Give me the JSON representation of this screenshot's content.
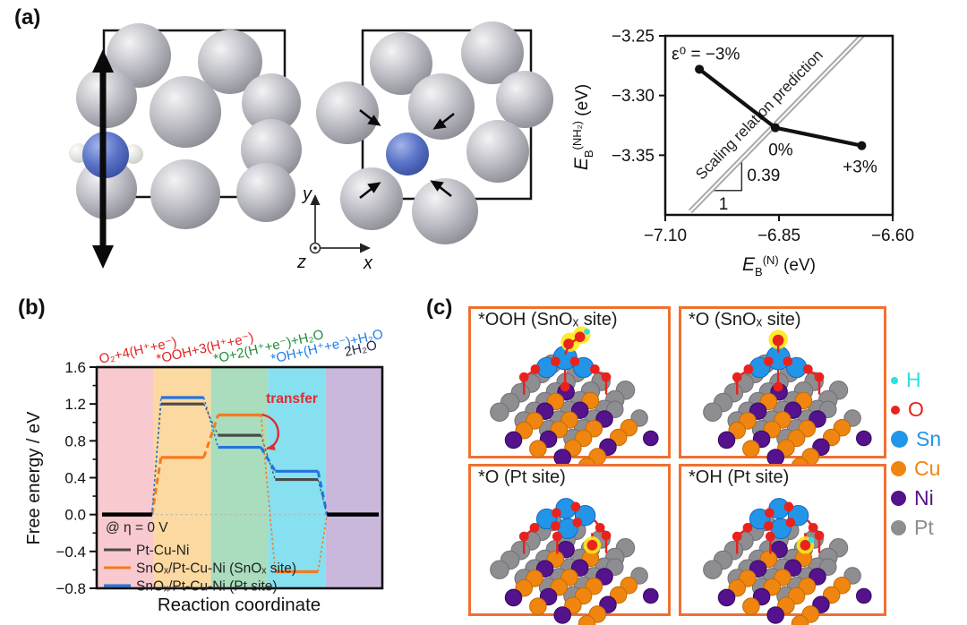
{
  "figure": {
    "panel_a_label": "(a)",
    "panel_b_label": "(b)",
    "panel_c_label": "(c)"
  },
  "panel_a": {
    "axes": {
      "x": "x",
      "y": "y",
      "z": "z"
    }
  },
  "panel_c": {
    "border_color": "#f07030",
    "boxes": [
      {
        "label": "*OOH (SnOₓ site)",
        "variant": "OOH-snox"
      },
      {
        "label": "*O (SnOₓ site)",
        "variant": "O-snox"
      },
      {
        "label": "*O (Pt site)",
        "variant": "O-pt"
      },
      {
        "label": "*OH (Pt site)",
        "variant": "OH-pt"
      }
    ],
    "legend": [
      {
        "element": "H",
        "color": "#2ee0e0",
        "dot": 8
      },
      {
        "element": "O",
        "color": "#e8231e",
        "dot": 10
      },
      {
        "element": "Sn",
        "color": "#2196e8",
        "dot": 19
      },
      {
        "element": "Cu",
        "color": "#f0860f",
        "dot": 17
      },
      {
        "element": "Ni",
        "color": "#54128c",
        "dot": 17
      },
      {
        "element": "Pt",
        "color": "#8e8e92",
        "dot": 17
      }
    ]
  },
  "chart_data": [
    {
      "id": "nh2-n-scaling",
      "type": "scatter",
      "xlabel_parts": {
        "base": "E",
        "sub": "B",
        "sup": "(N)",
        "unit": " (eV)"
      },
      "ylabel_parts": {
        "base": "E",
        "sub": "B",
        "sup": "(NH₂)",
        "unit": " (eV)"
      },
      "xlim": [
        -7.1,
        -6.6
      ],
      "ylim": [
        -3.4,
        -3.25
      ],
      "xticks": [
        -7.1,
        -6.85,
        -6.6
      ],
      "yticks": [
        -3.25,
        -3.3,
        -3.35
      ],
      "points": [
        {
          "label": "ε⁰ = −3%",
          "x": -7.025,
          "y": -3.278
        },
        {
          "label": "0%",
          "x": -6.858,
          "y": -3.327
        },
        {
          "label": "+3%",
          "x": -6.668,
          "y": -3.342
        }
      ],
      "line": {
        "label": "Scaling relation prediction",
        "slope": 0.39,
        "through": [
          -6.86,
          -3.325
        ],
        "slope_label": "0.39",
        "run_label": "1"
      }
    },
    {
      "id": "orr-free-energy",
      "type": "line",
      "xlabel": "Reaction coordinate",
      "ylabel": "Free energy / eV",
      "ylim": [
        -0.8,
        1.6
      ],
      "yticks": [
        1.6,
        1.2,
        0.8,
        0.4,
        0.0,
        -0.4,
        -0.8
      ],
      "condition_label": "@ η = 0 V",
      "stages": [
        {
          "label": "O₂+4(H⁺+e⁻)",
          "color": "#e02424",
          "band": "#f8c9ce"
        },
        {
          "label": "*OOH+3(H⁺+e⁻)",
          "color": "#e02424",
          "band": "#fcd9a1"
        },
        {
          "label": "*O+2(H⁺+e⁻)+H₂O",
          "color": "#1e8c3c",
          "band": "#a9ddbd"
        },
        {
          "label": "*OH+(H⁺+e⁻)+H₂O",
          "color": "#1e7ee8",
          "band": "#87e0ef"
        },
        {
          "label": "2H₂O",
          "color": "#2a2b45",
          "band": "#c9b8dc"
        }
      ],
      "series": [
        {
          "name": "Pt-Cu-Ni",
          "color": "#4a4a4a",
          "values": [
            0,
            1.2,
            0.86,
            0.38,
            0
          ]
        },
        {
          "name": "SnOₓ/Pt-Cu-Ni (SnOₓ site)",
          "color": "#f57a1e",
          "values": [
            0,
            0.62,
            1.08,
            -0.62,
            0
          ]
        },
        {
          "name": "SnOₓ/Pt-Cu-Ni (Pt site)",
          "color": "#2473e0",
          "values": [
            0,
            1.27,
            0.73,
            0.47,
            0
          ]
        }
      ],
      "annotation": {
        "text": "transfer",
        "color": "#e02b30"
      }
    }
  ]
}
